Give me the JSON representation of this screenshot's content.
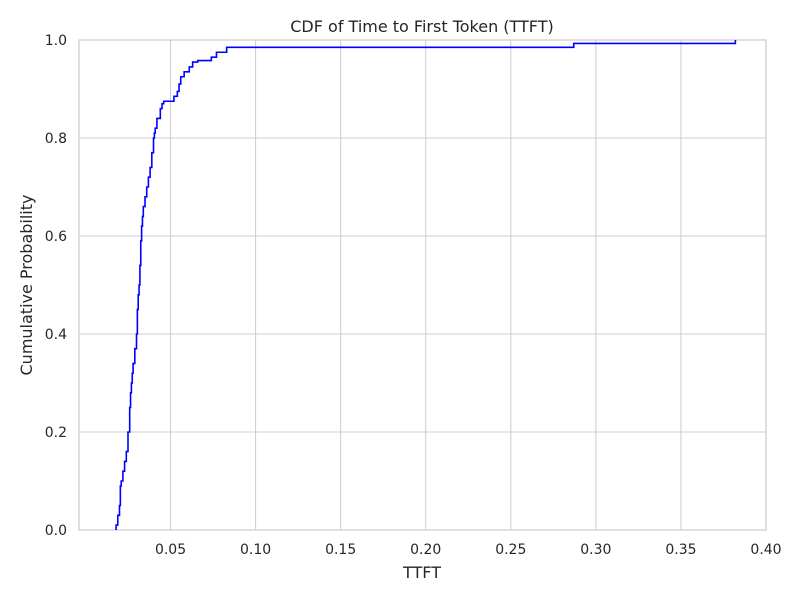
{
  "chart_data": {
    "type": "line",
    "title": "CDF of Time to First Token (TTFT)",
    "xlabel": "TTFT",
    "ylabel": "Cumulative Probability",
    "xlim": [
      -0.0038,
      0.4
    ],
    "ylim": [
      0,
      1
    ],
    "xticks": [
      0.05,
      0.1,
      0.15,
      0.2,
      0.25,
      0.3,
      0.35,
      0.4
    ],
    "xtick_labels": [
      "0.05",
      "0.10",
      "0.15",
      "0.20",
      "0.25",
      "0.30",
      "0.35",
      "0.40"
    ],
    "yticks": [
      0,
      0.2,
      0.4,
      0.6,
      0.8,
      1.0
    ],
    "ytick_labels": [
      "0.0",
      "0.2",
      "0.4",
      "0.6",
      "0.8",
      "1.0"
    ],
    "grid": true,
    "series": [
      {
        "color": "#0000ff",
        "step": true,
        "x": [
          0.018,
          0.019,
          0.02,
          0.0205,
          0.021,
          0.022,
          0.023,
          0.024,
          0.025,
          0.026,
          0.0265,
          0.027,
          0.0275,
          0.028,
          0.029,
          0.03,
          0.0305,
          0.031,
          0.0315,
          0.032,
          0.0325,
          0.033,
          0.0335,
          0.034,
          0.035,
          0.036,
          0.037,
          0.038,
          0.039,
          0.04,
          0.0405,
          0.041,
          0.042,
          0.044,
          0.045,
          0.046,
          0.048,
          0.052,
          0.054,
          0.055,
          0.056,
          0.058,
          0.061,
          0.063,
          0.066,
          0.074,
          0.077,
          0.083,
          0.287,
          0.382
        ],
        "y": [
          0.01,
          0.03,
          0.05,
          0.09,
          0.1,
          0.12,
          0.14,
          0.16,
          0.2,
          0.25,
          0.28,
          0.3,
          0.32,
          0.34,
          0.37,
          0.4,
          0.45,
          0.48,
          0.5,
          0.54,
          0.59,
          0.62,
          0.64,
          0.66,
          0.68,
          0.7,
          0.72,
          0.74,
          0.77,
          0.8,
          0.81,
          0.82,
          0.84,
          0.86,
          0.87,
          0.875,
          0.875,
          0.885,
          0.895,
          0.91,
          0.925,
          0.935,
          0.945,
          0.955,
          0.958,
          0.965,
          0.975,
          0.985,
          0.993,
          1.0
        ]
      }
    ]
  }
}
